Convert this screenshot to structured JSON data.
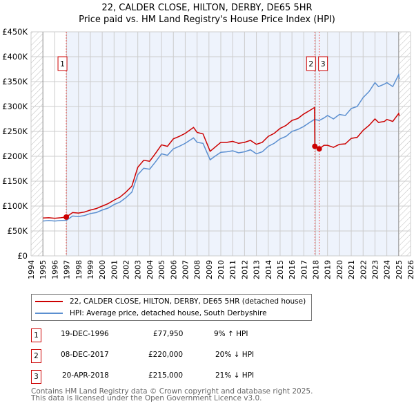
{
  "chart_data": {
    "type": "line",
    "title": "22, CALDER CLOSE, HILTON, DERBY, DE65 5HR",
    "subtitle": "Price paid vs. HM Land Registry's House Price Index (HPI)",
    "xlim": [
      1994,
      2026
    ],
    "ylim": [
      0,
      450000
    ],
    "x_ticks": [
      "1994",
      "1995",
      "1996",
      "1997",
      "1998",
      "1999",
      "2000",
      "2001",
      "2002",
      "2003",
      "2004",
      "2005",
      "2006",
      "2007",
      "2008",
      "2009",
      "2010",
      "2011",
      "2012",
      "2013",
      "2014",
      "2015",
      "2016",
      "2017",
      "2018",
      "2019",
      "2020",
      "2021",
      "2022",
      "2023",
      "2024",
      "2025",
      "2026"
    ],
    "y_ticks": [
      {
        "v": 0,
        "label": "£0"
      },
      {
        "v": 50000,
        "label": "£50K"
      },
      {
        "v": 100000,
        "label": "£100K"
      },
      {
        "v": 150000,
        "label": "£150K"
      },
      {
        "v": 200000,
        "label": "£200K"
      },
      {
        "v": 250000,
        "label": "£250K"
      },
      {
        "v": 300000,
        "label": "£300K"
      },
      {
        "v": 350000,
        "label": "£350K"
      },
      {
        "v": 400000,
        "label": "£400K"
      },
      {
        "v": 450000,
        "label": "£450K"
      }
    ],
    "grid": true,
    "series": [
      {
        "name": "22, CALDER CLOSE, HILTON, DERBY, DE65 5HR (detached house)",
        "color": "#cc0000",
        "x": [
          1995,
          1995.5,
          1996,
          1996.5,
          1996.97,
          1997.5,
          1998,
          1998.5,
          1999,
          1999.5,
          2000,
          2000.5,
          2001,
          2001.5,
          2002,
          2002.5,
          2003,
          2003.5,
          2004,
          2004.5,
          2005,
          2005.5,
          2006,
          2006.5,
          2007,
          2007.7,
          2008,
          2008.5,
          2009.1,
          2009.5,
          2010,
          2010.5,
          2011,
          2011.5,
          2012,
          2012.5,
          2013,
          2013.5,
          2014,
          2014.5,
          2015,
          2015.5,
          2016,
          2016.5,
          2017,
          2017.5,
          2017.9,
          2017.93,
          2018.3,
          2018.7,
          2019,
          2019.5,
          2020,
          2020.5,
          2021,
          2021.5,
          2022,
          2022.5,
          2023,
          2023.3,
          2023.8,
          2024,
          2024.5,
          2025,
          2025.05
        ],
        "y": [
          76000,
          76500,
          75500,
          76500,
          77950,
          87000,
          86000,
          88000,
          92000,
          95000,
          100000,
          105000,
          112000,
          118000,
          128000,
          140000,
          178000,
          192000,
          190000,
          206000,
          223000,
          220000,
          235000,
          240000,
          246000,
          258000,
          248000,
          245000,
          210000,
          218000,
          228000,
          228000,
          230000,
          226000,
          228000,
          232000,
          224000,
          228000,
          240000,
          246000,
          256000,
          262000,
          272000,
          276000,
          285000,
          292000,
          298000,
          220000,
          215000,
          222000,
          222000,
          218000,
          224000,
          225000,
          236000,
          238000,
          252000,
          262000,
          275000,
          268000,
          270000,
          274000,
          270000,
          286000,
          281000
        ]
      },
      {
        "name": "HPI: Average price, detached house, South Derbyshire",
        "color": "#5b8fd0",
        "x": [
          1995,
          1995.5,
          1996,
          1996.5,
          1997,
          1997.5,
          1998,
          1998.5,
          1999,
          1999.5,
          2000,
          2000.5,
          2001,
          2001.5,
          2002,
          2002.5,
          2003,
          2003.5,
          2004,
          2004.5,
          2005,
          2005.5,
          2006,
          2006.5,
          2007,
          2007.7,
          2008,
          2008.5,
          2009.1,
          2009.5,
          2010,
          2010.5,
          2011,
          2011.5,
          2012,
          2012.5,
          2013,
          2013.5,
          2014,
          2014.5,
          2015,
          2015.5,
          2016,
          2016.5,
          2017,
          2017.5,
          2017.9,
          2018.3,
          2018.7,
          2019,
          2019.5,
          2020,
          2020.5,
          2021,
          2021.5,
          2022,
          2022.5,
          2023,
          2023.3,
          2023.8,
          2024,
          2024.5,
          2025,
          2025.05
        ],
        "y": [
          70000,
          71000,
          70000,
          71000,
          71500,
          80000,
          79000,
          81000,
          85000,
          87000,
          92000,
          96000,
          103000,
          108000,
          117000,
          128000,
          163000,
          176000,
          174000,
          189000,
          205000,
          202000,
          215000,
          220000,
          226000,
          237000,
          228000,
          226000,
          193000,
          200000,
          208000,
          209000,
          211000,
          207000,
          209000,
          213000,
          205000,
          209000,
          220000,
          226000,
          235000,
          240000,
          250000,
          254000,
          260000,
          268000,
          274000,
          272000,
          277000,
          282000,
          275000,
          284000,
          282000,
          296000,
          300000,
          318000,
          330000,
          348000,
          340000,
          345000,
          348000,
          340000,
          364000,
          355000
        ]
      }
    ],
    "sales": [
      {
        "id": "1",
        "x": 1996.97,
        "price": 77950,
        "date": "19-DEC-1996",
        "price_label": "£77,950",
        "hpi": "9% ↑ HPI"
      },
      {
        "id": "2",
        "x": 2017.93,
        "price": 220000,
        "date": "08-DEC-2017",
        "price_label": "£220,000",
        "hpi": "20% ↓ HPI"
      },
      {
        "id": "3",
        "x": 2018.3,
        "price": 215000,
        "date": "20-APR-2018",
        "price_label": "£215,000",
        "hpi": "21% ↓ HPI"
      }
    ]
  },
  "footer": {
    "line1": "Contains HM Land Registry data © Crown copyright and database right 2025.",
    "line2": "This data is licensed under the Open Government Licence v3.0."
  }
}
